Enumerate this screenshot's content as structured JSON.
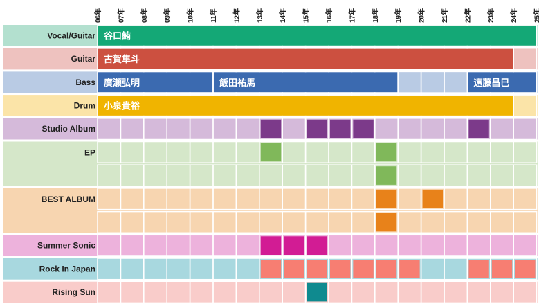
{
  "chart_data": {
    "type": "table",
    "x_ticks": [
      "06年",
      "07年",
      "08年",
      "09年",
      "10年",
      "11年",
      "12年",
      "13年",
      "14年",
      "15年",
      "16年",
      "17年",
      "18年",
      "19年",
      "20年",
      "21年",
      "22年",
      "23年",
      "24年",
      "25年"
    ],
    "rows": [
      {
        "label": "Vocal/Guitar",
        "bg": "#b3e0cf",
        "bars": [
          {
            "name": "谷口鮪",
            "start": 2006,
            "end": 2025,
            "color": "#14a876"
          }
        ]
      },
      {
        "label": "Guitar",
        "bg": "#eec2bf",
        "bars": [
          {
            "name": "古賀隼斗",
            "start": 2006,
            "end": 2024,
            "color": "#cc5040"
          }
        ]
      },
      {
        "label": "Bass",
        "bg": "#b9cbe4",
        "bars": [
          {
            "name": "廣瀬弘明",
            "start": 2006,
            "end": 2011,
            "color": "#3b6ab0"
          },
          {
            "name": "飯田祐馬",
            "start": 2011,
            "end": 2019,
            "color": "#3b6ab0"
          },
          {
            "name": "遠藤昌巳",
            "start": 2022,
            "end": 2025,
            "color": "#3b6ab0"
          }
        ]
      },
      {
        "label": "Drum",
        "bg": "#fbe4a8",
        "bars": [
          {
            "name": "小泉貴裕",
            "start": 2006,
            "end": 2024,
            "color": "#f0b400"
          }
        ]
      },
      {
        "label": "Studio Album",
        "bg": "#d5bada",
        "lines": 1,
        "color": "#7c3a8a",
        "marks": [
          {
            "year": 2013,
            "lane": 0
          },
          {
            "year": 2015,
            "lane": 0
          },
          {
            "year": 2016,
            "lane": 0
          },
          {
            "year": 2017,
            "lane": 0
          },
          {
            "year": 2022,
            "lane": 0
          }
        ]
      },
      {
        "label": "EP",
        "bg": "#d5e7c9",
        "lines": 2,
        "color": "#80b85a",
        "marks": [
          {
            "year": 2013,
            "lane": 0
          },
          {
            "year": 2018,
            "lane": 0
          },
          {
            "year": 2018,
            "lane": 1
          }
        ]
      },
      {
        "label": "BEST ALBUM",
        "bg": "#f7d5b0",
        "lines": 2,
        "color": "#e8821a",
        "marks": [
          {
            "year": 2018,
            "lane": 0
          },
          {
            "year": 2020,
            "lane": 0
          },
          {
            "year": 2018,
            "lane": 1
          }
        ]
      },
      {
        "label": "Summer Sonic",
        "bg": "#edb2dc",
        "lines": 1,
        "color": "#d21c94",
        "marks": [
          {
            "year": 2013,
            "lane": 0
          },
          {
            "year": 2014,
            "lane": 0
          },
          {
            "year": 2015,
            "lane": 0
          }
        ]
      },
      {
        "label": "Rock In Japan",
        "bg": "#a8d8df",
        "lines": 1,
        "color": "#f77e72",
        "marks": [
          {
            "year": 2013,
            "lane": 0
          },
          {
            "year": 2014,
            "lane": 0
          },
          {
            "year": 2015,
            "lane": 0
          },
          {
            "year": 2016,
            "lane": 0
          },
          {
            "year": 2017,
            "lane": 0
          },
          {
            "year": 2018,
            "lane": 0
          },
          {
            "year": 2019,
            "lane": 0
          },
          {
            "year": 2022,
            "lane": 0
          },
          {
            "year": 2023,
            "lane": 0
          },
          {
            "year": 2024,
            "lane": 0
          }
        ]
      },
      {
        "label": "Rising Sun",
        "bg": "#f9ccca",
        "lines": 1,
        "color": "#0f8a8f",
        "marks": [
          {
            "year": 2015,
            "lane": 0
          }
        ]
      }
    ]
  }
}
